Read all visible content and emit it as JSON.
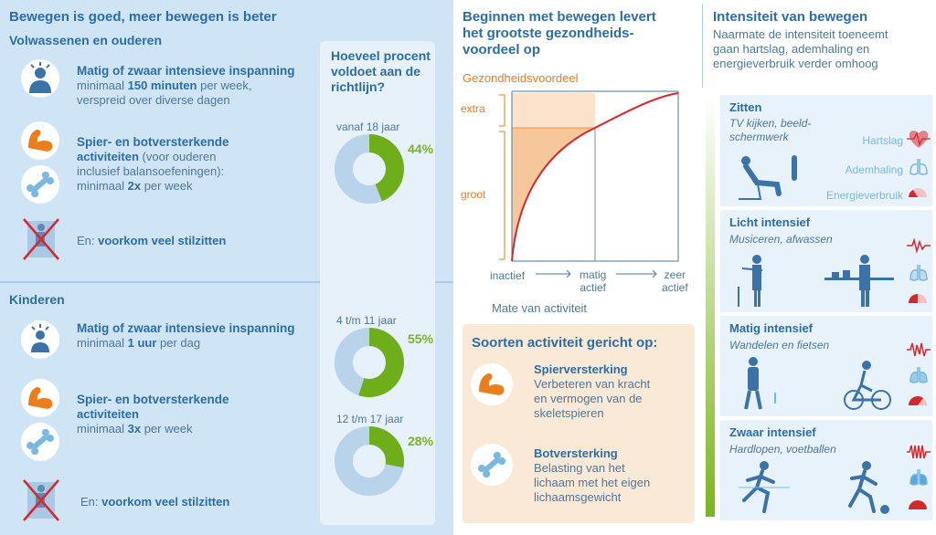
{
  "left": {
    "title": "Bewegen is goed, meer bewegen is beter",
    "adults": {
      "heading": "Volwassenen en ouderen",
      "item1_title": "Matig of zwaar intensieve inspanning",
      "item1_line2_a": "minimaal ",
      "item1_line2_b": "150 minuten",
      "item1_line2_c": " per week,",
      "item1_line3": "verspreid over diverse dagen",
      "item2_title_a": "Spier- en botversterkende",
      "item2_title_b": "activiteiten",
      "item2_line_a": " (voor ouderen",
      "item2_line2": "inclusief balansoefeningen):",
      "item2_line3_a": "minimaal ",
      "item2_line3_b": "2x",
      "item2_line3_c": " per week",
      "item3_a": "En: ",
      "item3_b": "voorkom veel stilzitten"
    },
    "kids": {
      "heading": "Kinderen",
      "item1_title": "Matig of zwaar intensieve inspanning",
      "item1_line2_a": "minimaal ",
      "item1_line2_b": "1 uur",
      "item1_line2_c": " per dag",
      "item2_title_a": "Spier- en botversterkende",
      "item2_title_b": "activiteiten",
      "item2_line3_a": "minimaal ",
      "item2_line3_b": "3x",
      "item2_line3_c": " per week",
      "item3_a": "En: ",
      "item3_b": "voorkom veel stilzitten"
    },
    "percent_panel": {
      "title_line1": "Hoeveel procent",
      "title_line2": "voldoet aan de",
      "title_line3": "richtlijn?",
      "donuts": [
        {
          "label": "vanaf 18 jaar",
          "value": "44%",
          "fraction": 0.44
        },
        {
          "label": "4 t/m 11 jaar",
          "value": "55%",
          "fraction": 0.55
        },
        {
          "label": "12 t/m 17 jaar",
          "value": "28%",
          "fraction": 0.28
        }
      ]
    }
  },
  "middle": {
    "title_line1": "Beginnen met bewegen levert",
    "title_line2": "het grootste gezondheids-",
    "title_line3": "voordeel op",
    "chart_data": {
      "type": "line",
      "title": "",
      "ylabel": "Gezondheidsvoordeel",
      "xlabel": "Mate van activiteit",
      "x_ticks": [
        {
          "line1": "inactief",
          "line2": ""
        },
        {
          "line1": "matig",
          "line2": "actief"
        },
        {
          "line1": "zeer",
          "line2": "actief"
        }
      ],
      "y_bands": [
        "extra",
        "groot"
      ]
    },
    "card": {
      "title": "Soorten activiteit gericht op:",
      "item1_title": "Spierversterking",
      "item1_l1": "Verbeteren van kracht",
      "item1_l2": "en vermogen van de",
      "item1_l3": "skeletspieren",
      "item2_title": "Botversterking",
      "item2_l1": "Belasting van het",
      "item2_l2": "lichaam met het eigen",
      "item2_l3": "lichaamsgewicht"
    }
  },
  "right": {
    "title": "Intensiteit van bewegen",
    "sub_l1": "Naarmate de intensiteit toeneemt",
    "sub_l2": "gaan hartslag, ademhaling en",
    "sub_l3": "energieverbruik verder omhoog",
    "rows": [
      {
        "title": "Zitten",
        "sub_l1": "TV kijken, beeld-",
        "sub_l2": "schermwerk"
      },
      {
        "title": "Licht intensief",
        "sub_l1": "Musiceren, afwassen",
        "sub_l2": ""
      },
      {
        "title": "Matig intensief",
        "sub_l1": "Wandelen en fietsen",
        "sub_l2": ""
      },
      {
        "title": "Zwaar intensief",
        "sub_l1": "Hardlopen, voetballen",
        "sub_l2": ""
      }
    ],
    "legend": {
      "heart": "Hartslag",
      "breath": "Ademhaling",
      "energy": "Energieverbruik"
    }
  }
}
